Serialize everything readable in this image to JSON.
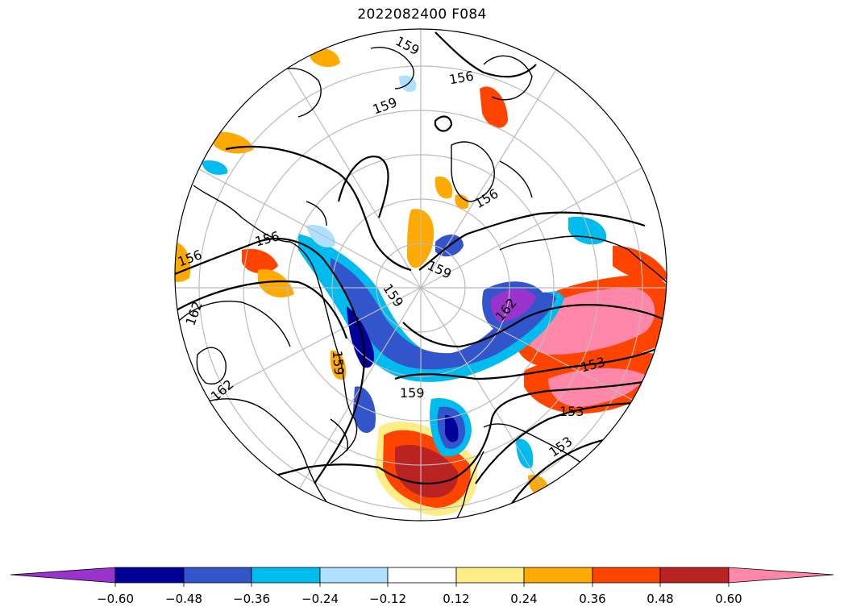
{
  "title": "2022082400 F084",
  "contour_labels": [
    "159",
    "156",
    "159",
    "156",
    "156",
    "156",
    "159",
    "159",
    "162",
    "159",
    "159",
    "153",
    "153",
    "153",
    "162",
    "162",
    "153"
  ],
  "colorbar": {
    "colors": [
      "#9933cc",
      "#000099",
      "#3355cc",
      "#00bbee",
      "#b0e0ff",
      "#ffffff",
      "#ffee88",
      "#ffaa00",
      "#ff4400",
      "#bb2222",
      "#ff88aa"
    ],
    "ticks": [
      "−0.60",
      "−0.48",
      "−0.36",
      "−0.24",
      "−0.12",
      "0.12",
      "0.24",
      "0.36",
      "0.48",
      "0.60"
    ],
    "extend": "both"
  }
}
